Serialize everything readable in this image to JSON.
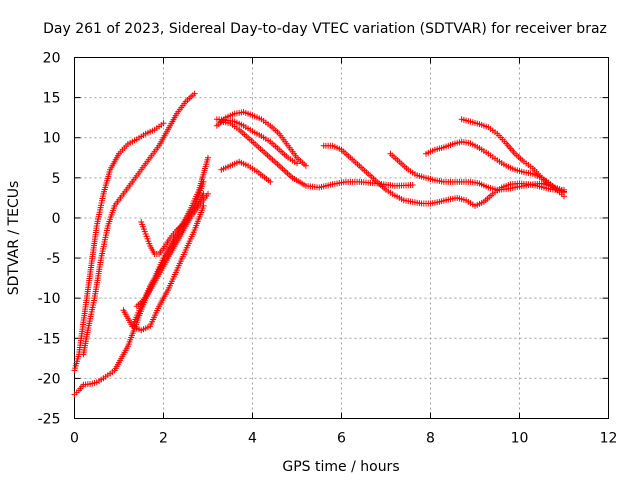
{
  "chart_data": {
    "type": "scatter",
    "title": "Day 261 of 2023, Sidereal Day-to-day VTEC variation (SDTVAR) for receiver braz",
    "xlabel": "GPS time / hours",
    "ylabel": "SDTVAR / TECUs",
    "xlim": [
      0,
      12
    ],
    "ylim": [
      -25,
      20
    ],
    "xticks": [
      0,
      2,
      4,
      6,
      8,
      10,
      12
    ],
    "yticks": [
      -25,
      -20,
      -15,
      -10,
      -5,
      0,
      5,
      10,
      15,
      20
    ],
    "grid": true,
    "marker": "+",
    "color": "#ff0000",
    "series": [
      {
        "name": "s1",
        "x": [
          0.0,
          0.1,
          0.2,
          0.35,
          0.5,
          0.65,
          0.8,
          1.0,
          1.2,
          1.4,
          1.6,
          1.8,
          2.0
        ],
        "y": [
          -19,
          -17,
          -13,
          -7,
          -1,
          3,
          6,
          8,
          9.2,
          9.8,
          10.5,
          11,
          11.8
        ]
      },
      {
        "name": "s2",
        "x": [
          0.2,
          0.3,
          0.45,
          0.6,
          0.75,
          0.9,
          1.1,
          1.3,
          1.5,
          1.7,
          1.9,
          2.1,
          2.3,
          2.5,
          2.7
        ],
        "y": [
          -17,
          -14,
          -10,
          -5,
          -1,
          1.5,
          3,
          4.5,
          6,
          7.5,
          9,
          11,
          13,
          14.5,
          15.5
        ]
      },
      {
        "name": "s3",
        "x": [
          0.0,
          0.1,
          0.2,
          0.35,
          0.5,
          0.7,
          0.9,
          1.05,
          1.2,
          1.4,
          1.6,
          1.8,
          2.0,
          2.2,
          2.4,
          2.6,
          2.8,
          3.0
        ],
        "y": [
          -22,
          -21.5,
          -20.8,
          -20.7,
          -20.5,
          -19.8,
          -19,
          -17.5,
          -16,
          -13,
          -10,
          -7.5,
          -5,
          -3,
          -1,
          1,
          3.5,
          7.5
        ]
      },
      {
        "name": "s4",
        "x": [
          1.5,
          1.6,
          1.7,
          1.8,
          1.9,
          2.0,
          2.15,
          2.3,
          2.5,
          2.7,
          2.9
        ],
        "y": [
          -0.5,
          -2,
          -3.5,
          -4.5,
          -4.5,
          -3.8,
          -2.5,
          -1.5,
          -0.5,
          1,
          3
        ]
      },
      {
        "name": "s5",
        "x": [
          1.1,
          1.3,
          1.5,
          1.7,
          1.9,
          2.1,
          2.3,
          2.5,
          2.7,
          2.9
        ],
        "y": [
          -11.5,
          -13.5,
          -14,
          -13.5,
          -11,
          -9,
          -6.5,
          -4,
          -1.5,
          1.5
        ]
      },
      {
        "name": "s6",
        "x": [
          1.4,
          1.6,
          1.8,
          2.0,
          2.2,
          2.4,
          2.6,
          2.8,
          3.0
        ],
        "y": [
          -11,
          -10,
          -8,
          -6,
          -4,
          -2,
          0,
          1.5,
          3
        ]
      },
      {
        "name": "s7",
        "x": [
          1.3,
          1.5,
          1.7,
          1.9,
          2.1,
          2.3,
          2.5,
          2.7,
          2.9
        ],
        "y": [
          -13.5,
          -11,
          -8.5,
          -6.5,
          -4.5,
          -2.5,
          -0.5,
          1.5,
          4.5
        ]
      },
      {
        "name": "s8",
        "x": [
          3.2,
          3.4,
          3.6,
          3.8,
          4.0,
          4.2,
          4.4,
          4.6,
          4.8,
          5.0,
          5.2
        ],
        "y": [
          11.5,
          12.5,
          13,
          13.2,
          12.8,
          12.3,
          11.5,
          10.5,
          9,
          7.5,
          6.5
        ]
      },
      {
        "name": "s9",
        "x": [
          3.2,
          3.4,
          3.6,
          3.8,
          4.0,
          4.2,
          4.4,
          4.6,
          4.8,
          5.0
        ],
        "y": [
          12.3,
          12.2,
          12,
          11.5,
          10.8,
          10.2,
          9.5,
          8.5,
          7.5,
          6.8
        ]
      },
      {
        "name": "s10",
        "x": [
          3.3,
          3.5,
          3.7,
          3.9,
          4.1,
          4.3,
          4.6,
          4.9,
          5.2,
          5.5,
          5.8,
          6.1,
          6.4,
          6.8,
          7.2,
          7.6
        ],
        "y": [
          12,
          11.8,
          11,
          10,
          9,
          8,
          6.5,
          5,
          4,
          3.8,
          4.2,
          4.5,
          4.5,
          4.3,
          4,
          4.1
        ]
      },
      {
        "name": "s11",
        "x": [
          3.3,
          3.5,
          3.7,
          3.9,
          4.1,
          4.4
        ],
        "y": [
          6,
          6.5,
          7,
          6.5,
          5.8,
          4.5
        ]
      },
      {
        "name": "s12",
        "x": [
          5.6,
          5.8,
          6.0,
          6.2,
          6.4,
          6.6,
          6.8,
          7.0,
          7.2,
          7.4,
          7.6,
          7.8,
          8.0,
          8.2,
          8.4,
          8.6,
          8.8,
          9.0,
          9.2,
          9.4,
          9.6,
          9.8,
          10.0,
          10.2,
          10.4,
          10.6,
          10.8,
          11.0
        ],
        "y": [
          9,
          9,
          8.5,
          7.5,
          6.5,
          5.5,
          4.5,
          3.5,
          2.8,
          2.2,
          2,
          1.8,
          1.8,
          2,
          2.3,
          2.5,
          2.2,
          1.5,
          2,
          3,
          3.8,
          4.2,
          4.3,
          4.2,
          4,
          3.7,
          3.5,
          3.5
        ]
      },
      {
        "name": "s13",
        "x": [
          7.1,
          7.3,
          7.5,
          7.7,
          7.9,
          8.1,
          8.3,
          8.5,
          8.7,
          8.9,
          9.1,
          9.3,
          9.5,
          9.7,
          9.9,
          10.1,
          10.3,
          10.5,
          10.7,
          10.9,
          11.0
        ],
        "y": [
          8,
          7,
          6,
          5.3,
          5,
          4.7,
          4.5,
          4.5,
          4.5,
          4.5,
          4.3,
          3.8,
          3.5,
          3.6,
          3.8,
          4,
          4.2,
          4.3,
          4,
          3.6,
          3.3
        ]
      },
      {
        "name": "s14",
        "x": [
          7.9,
          8.1,
          8.3,
          8.5,
          8.7,
          8.9,
          9.1,
          9.3,
          9.5,
          9.7,
          9.9,
          10.1,
          10.3,
          10.5,
          10.7,
          10.9,
          11.0
        ],
        "y": [
          8,
          8.5,
          8.8,
          9.2,
          9.5,
          9.3,
          8.7,
          8,
          7.2,
          6.5,
          6,
          5.7,
          5.5,
          5,
          4.2,
          3.2,
          2.7
        ]
      },
      {
        "name": "s15",
        "x": [
          8.7,
          8.9,
          9.1,
          9.3,
          9.5,
          9.7,
          9.9,
          10.1,
          10.3,
          10.5,
          10.7,
          10.9,
          11.0
        ],
        "y": [
          12.3,
          12,
          11.7,
          11.3,
          10.5,
          9.3,
          8,
          7,
          6.2,
          5,
          4,
          3.5,
          3.2
        ]
      }
    ]
  }
}
